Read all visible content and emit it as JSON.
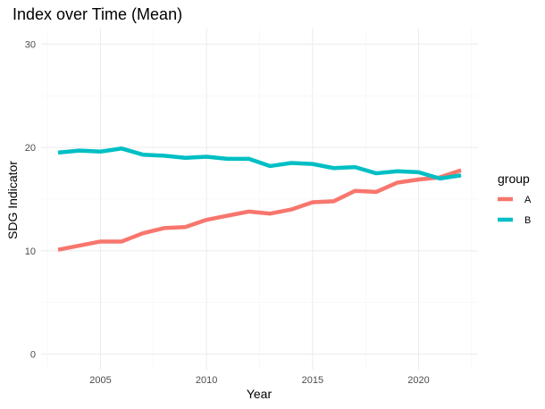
{
  "chart_data": {
    "type": "line",
    "title": "Index over Time (Mean)",
    "xlabel": "Year",
    "ylabel": "SDG Indicator",
    "xlim": [
      2002.2,
      2022.8
    ],
    "ylim": [
      -1.5,
      31.5
    ],
    "x_ticks": [
      2005,
      2010,
      2015,
      2020
    ],
    "y_ticks": [
      0,
      10,
      20,
      30
    ],
    "grid": true,
    "legend": {
      "title": "group",
      "placement": "right"
    },
    "x": [
      2003,
      2004,
      2005,
      2006,
      2007,
      2008,
      2009,
      2010,
      2011,
      2012,
      2013,
      2014,
      2015,
      2016,
      2017,
      2018,
      2019,
      2020,
      2021,
      2022
    ],
    "series": [
      {
        "name": "A",
        "color": "#f8766d",
        "values": [
          10.1,
          10.5,
          10.9,
          10.9,
          11.7,
          12.2,
          12.3,
          13.0,
          13.4,
          13.8,
          13.6,
          14.0,
          14.7,
          14.8,
          15.8,
          15.7,
          16.6,
          16.9,
          17.1,
          17.8
        ]
      },
      {
        "name": "B",
        "color": "#00bfc4",
        "values": [
          19.5,
          19.7,
          19.6,
          19.9,
          19.3,
          19.2,
          19.0,
          19.1,
          18.9,
          18.9,
          18.2,
          18.5,
          18.4,
          18.0,
          18.1,
          17.5,
          17.7,
          17.6,
          17.0,
          17.3
        ]
      }
    ]
  }
}
